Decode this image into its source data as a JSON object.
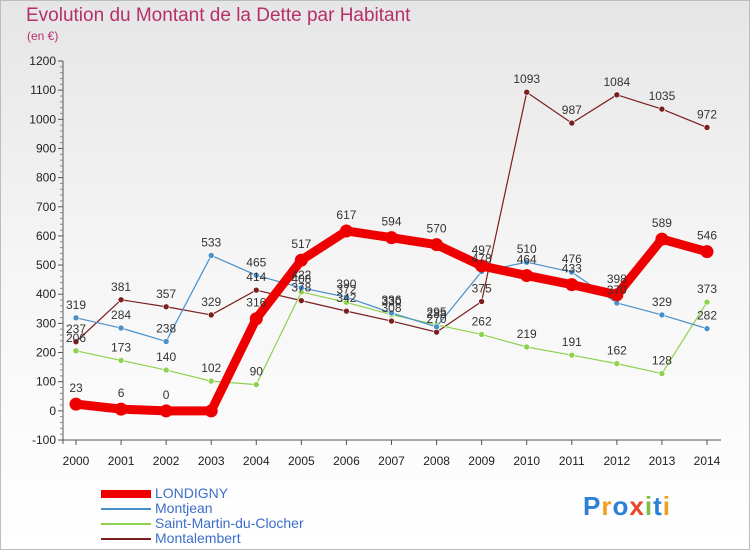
{
  "chart_data": {
    "type": "line",
    "title": "Evolution du Montant de la Dette par Habitant",
    "unit_label": "(en €)",
    "x": [
      "2000",
      "2001",
      "2002",
      "2003",
      "2004",
      "2005",
      "2006",
      "2007",
      "2008",
      "2009",
      "2010",
      "2011",
      "2012",
      "2013",
      "2014"
    ],
    "ylim": [
      -100,
      1200
    ],
    "yticks": [
      "-100",
      "0",
      "100",
      "200",
      "300",
      "400",
      "500",
      "600",
      "700",
      "800",
      "900",
      "1000",
      "1100",
      "1200"
    ],
    "grid": false,
    "legend_position": "bottom-left",
    "series": [
      {
        "name": "LONDIGNY",
        "color": "#ee0000",
        "values": [
          23,
          6,
          0,
          0,
          316,
          517,
          617,
          594,
          570,
          497,
          464,
          433,
          398,
          589,
          546
        ],
        "labels": [
          "23",
          "6",
          "0",
          "",
          "316",
          "517",
          "617",
          "594",
          "570",
          "497",
          "464",
          "433",
          "398",
          "589",
          "546"
        ]
      },
      {
        "name": "Montjean",
        "color": "#4a90c8",
        "values": [
          319,
          284,
          238,
          533,
          465,
          422,
          390,
          336,
          288,
          478,
          510,
          476,
          370,
          329,
          282
        ],
        "labels": [
          "319",
          "284",
          "238",
          "533",
          "465",
          "422",
          "390",
          "336",
          "288",
          "478",
          "510",
          "476",
          "370",
          "329",
          "282"
        ]
      },
      {
        "name": "Saint-Martin-du-Clocher",
        "color": "#8fd14f",
        "values": [
          206,
          173,
          140,
          102,
          90,
          408,
          372,
          330,
          295,
          262,
          219,
          191,
          162,
          128,
          373
        ],
        "labels": [
          "206",
          "173",
          "140",
          "102",
          "90",
          "408",
          "372",
          "330",
          "295",
          "262",
          "219",
          "191",
          "162",
          "128",
          "373"
        ]
      },
      {
        "name": "Montalembert",
        "color": "#7a1f1f",
        "values": [
          237,
          381,
          357,
          329,
          414,
          378,
          342,
          308,
          270,
          375,
          1093,
          987,
          1084,
          1035,
          972
        ],
        "labels": [
          "237",
          "381",
          "357",
          "329",
          "414",
          "378",
          "342",
          "308",
          "270",
          "375",
          "1093",
          "987",
          "1084",
          "1035",
          "972"
        ]
      }
    ]
  },
  "logo_text": "Proxiti"
}
